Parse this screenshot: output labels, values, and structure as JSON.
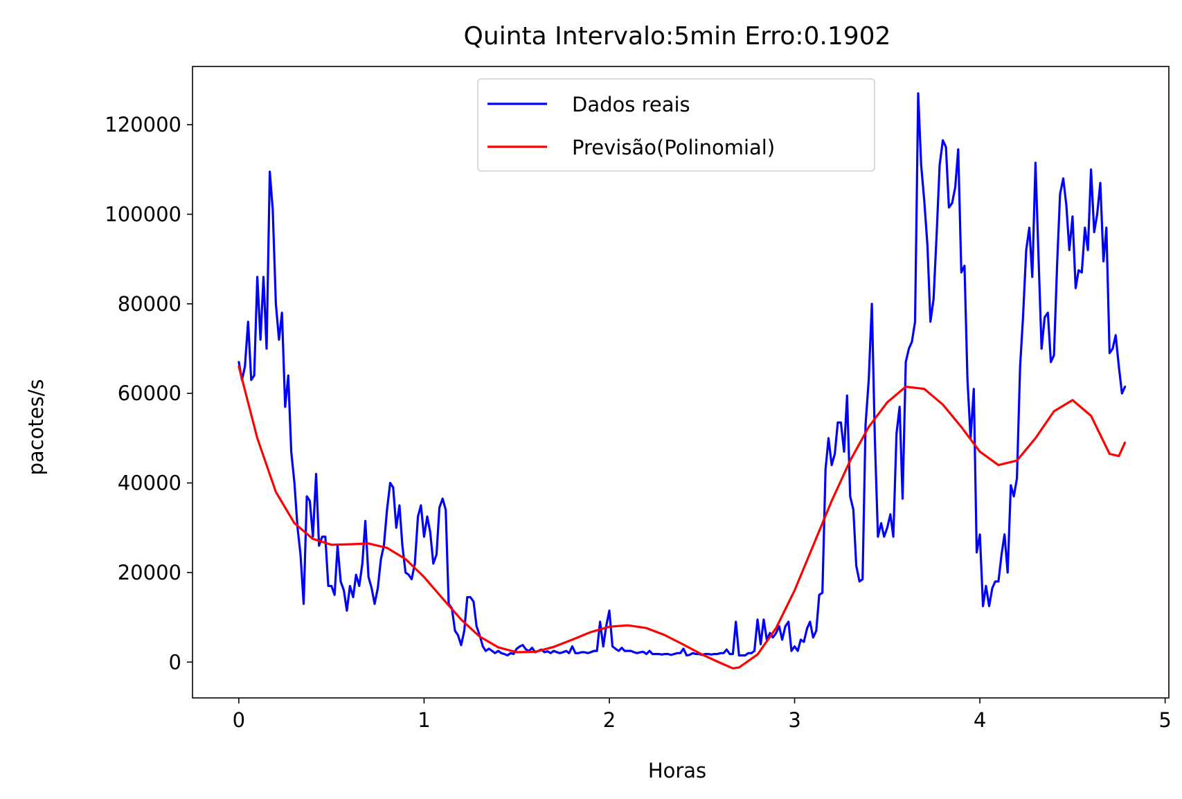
{
  "chart_data": {
    "type": "line",
    "title": "Quinta Intervalo:5min Erro:0.1902",
    "xlabel": "Horas",
    "ylabel": "pacotes/s",
    "xlim": [
      -0.25,
      5.02
    ],
    "ylim": [
      -8000,
      133000
    ],
    "xticks": [
      0,
      1,
      2,
      3,
      4,
      5
    ],
    "xtick_labels": [
      "0",
      "1",
      "2",
      "3",
      "4",
      "5"
    ],
    "yticks": [
      0,
      20000,
      40000,
      60000,
      80000,
      100000,
      120000
    ],
    "ytick_labels": [
      "0",
      "20000",
      "40000",
      "60000",
      "80000",
      "100000",
      "120000"
    ],
    "grid": false,
    "legend_position": "top-center",
    "series": [
      {
        "name": "Dados reais",
        "color": "#0000ff",
        "x": [
          0,
          0.017,
          0.033,
          0.05,
          0.067,
          0.083,
          0.1,
          0.117,
          0.133,
          0.15,
          0.167,
          0.183,
          0.2,
          0.217,
          0.233,
          0.25,
          0.267,
          0.283,
          0.3,
          0.317,
          0.333,
          0.35,
          0.367,
          0.383,
          0.4,
          0.417,
          0.433,
          0.45,
          0.467,
          0.483,
          0.5,
          0.517,
          0.533,
          0.55,
          0.567,
          0.583,
          0.6,
          0.617,
          0.633,
          0.65,
          0.667,
          0.683,
          0.7,
          0.717,
          0.733,
          0.75,
          0.767,
          0.783,
          0.8,
          0.817,
          0.833,
          0.85,
          0.867,
          0.883,
          0.9,
          0.917,
          0.933,
          0.95,
          0.967,
          0.983,
          1.0,
          1.017,
          1.033,
          1.05,
          1.067,
          1.083,
          1.1,
          1.117,
          1.133,
          1.15,
          1.167,
          1.183,
          1.2,
          1.217,
          1.233,
          1.25,
          1.267,
          1.283,
          1.3,
          1.317,
          1.333,
          1.35,
          1.367,
          1.383,
          1.4,
          1.417,
          1.433,
          1.45,
          1.467,
          1.483,
          1.5,
          1.517,
          1.533,
          1.55,
          1.567,
          1.583,
          1.6,
          1.617,
          1.633,
          1.65,
          1.667,
          1.683,
          1.7,
          1.717,
          1.733,
          1.75,
          1.767,
          1.783,
          1.8,
          1.817,
          1.833,
          1.85,
          1.867,
          1.883,
          1.9,
          1.917,
          1.933,
          1.95,
          1.967,
          1.983,
          2.0,
          2.017,
          2.033,
          2.05,
          2.067,
          2.083,
          2.1,
          2.117,
          2.133,
          2.15,
          2.167,
          2.183,
          2.2,
          2.217,
          2.233,
          2.25,
          2.267,
          2.283,
          2.3,
          2.317,
          2.333,
          2.35,
          2.367,
          2.383,
          2.4,
          2.417,
          2.433,
          2.45,
          2.467,
          2.483,
          2.5,
          2.517,
          2.533,
          2.55,
          2.567,
          2.583,
          2.6,
          2.617,
          2.633,
          2.65,
          2.667,
          2.683,
          2.7,
          2.717,
          2.733,
          2.75,
          2.767,
          2.783,
          2.8,
          2.817,
          2.833,
          2.85,
          2.867,
          2.883,
          2.9,
          2.917,
          2.933,
          2.95,
          2.967,
          2.983,
          3.0,
          3.017,
          3.033,
          3.05,
          3.067,
          3.083,
          3.1,
          3.117,
          3.133,
          3.15,
          3.167,
          3.183,
          3.2,
          3.217,
          3.233,
          3.25,
          3.267,
          3.283,
          3.3,
          3.317,
          3.333,
          3.35,
          3.367,
          3.383,
          3.4,
          3.417,
          3.433,
          3.45,
          3.467,
          3.483,
          3.5,
          3.517,
          3.533,
          3.55,
          3.567,
          3.583,
          3.6,
          3.617,
          3.633,
          3.65,
          3.667,
          3.683,
          3.7,
          3.717,
          3.733,
          3.75,
          3.767,
          3.783,
          3.8,
          3.817,
          3.833,
          3.85,
          3.867,
          3.883,
          3.9,
          3.917,
          3.933,
          3.95,
          3.967,
          3.983,
          4.0,
          4.017,
          4.033,
          4.05,
          4.067,
          4.083,
          4.1,
          4.117,
          4.133,
          4.15,
          4.167,
          4.183,
          4.2,
          4.217,
          4.233,
          4.25,
          4.267,
          4.283,
          4.3,
          4.317,
          4.333,
          4.35,
          4.367,
          4.383,
          4.4,
          4.417,
          4.433,
          4.45,
          4.467,
          4.483,
          4.5,
          4.517,
          4.533,
          4.55,
          4.567,
          4.583,
          4.6,
          4.617,
          4.633,
          4.65,
          4.667,
          4.683,
          4.7,
          4.717,
          4.733,
          4.75,
          4.767,
          4.783
        ],
        "y": [
          67000,
          63000,
          66000,
          76000,
          63000,
          64000,
          86000,
          72000,
          86000,
          70000,
          109500,
          101000,
          80000,
          72000,
          78000,
          57000,
          64000,
          47000,
          40000,
          30000,
          24000,
          13000,
          37000,
          36000,
          28000,
          42000,
          26000,
          28000,
          28000,
          17000,
          17000,
          15000,
          26000,
          18000,
          16000,
          11500,
          17000,
          14500,
          19500,
          17000,
          22000,
          31500,
          19000,
          16500,
          13000,
          16500,
          23000,
          26000,
          34000,
          40000,
          39000,
          30000,
          35000,
          26000,
          20000,
          19500,
          18500,
          22000,
          32500,
          35000,
          28000,
          32500,
          29000,
          22000,
          24000,
          34500,
          36500,
          34000,
          13000,
          12000,
          7000,
          6000,
          3800,
          7000,
          14500,
          14500,
          13500,
          8000,
          6000,
          3500,
          2500,
          3000,
          2500,
          2000,
          2500,
          2000,
          1800,
          1500,
          2000,
          1800,
          3000,
          3500,
          3800,
          2800,
          2500,
          3200,
          2200,
          2500,
          2800,
          2200,
          2400,
          2000,
          2500,
          2200,
          2000,
          2200,
          2500,
          2000,
          3500,
          2000,
          2000,
          2200,
          2200,
          2000,
          2200,
          2500,
          2500,
          9000,
          3500,
          8000,
          11500,
          3500,
          3000,
          2500,
          3200,
          2500,
          2500,
          2500,
          2200,
          2000,
          2200,
          2300,
          1800,
          2500,
          1800,
          1800,
          1800,
          1700,
          1800,
          1800,
          1600,
          1800,
          2000,
          2000,
          3000,
          1500,
          1600,
          2000,
          1800,
          1800,
          1600,
          1800,
          1800,
          1700,
          1800,
          1800,
          2000,
          2000,
          2800,
          1800,
          1800,
          9000,
          1500,
          1500,
          1500,
          2000,
          2000,
          2500,
          9500,
          4000,
          9500,
          5000,
          6500,
          5500,
          6500,
          8000,
          5000,
          8000,
          9000,
          2500,
          3500,
          2500,
          5000,
          4500,
          7500,
          9000,
          5500,
          7000,
          15000,
          15500,
          43000,
          50000,
          44000,
          46500,
          53500,
          53500,
          47000,
          59500,
          37000,
          34000,
          21500,
          18000,
          18500,
          53000,
          63000,
          80000,
          50000,
          28000,
          31000,
          28000,
          30000,
          33000,
          28000,
          51000,
          57000,
          36500,
          67000,
          70000,
          71500,
          76000,
          127000,
          111000,
          103000,
          93000,
          76000,
          81000,
          96000,
          111000,
          116500,
          115000,
          101500,
          102500,
          106000,
          114500,
          87000,
          88500,
          63000,
          50000,
          61000,
          24500,
          28500,
          12500,
          17000,
          12500,
          16500,
          18000,
          18000,
          24000,
          28500,
          20000,
          39500,
          37000,
          41000,
          66000,
          77000,
          92000,
          97000,
          86000,
          111500,
          90000,
          70000,
          77000,
          78000,
          67000,
          68500,
          89000,
          104500,
          108000,
          102000,
          92000,
          99500,
          83500,
          87500,
          87000,
          97000,
          92000,
          110000,
          96000,
          100000,
          107000,
          89500,
          97000,
          69000,
          70000,
          73000,
          66000,
          60000,
          61500
        ]
      },
      {
        "name": "Previsão(Polinomial)",
        "color": "#ff0000",
        "x": [
          0,
          0.1,
          0.2,
          0.3,
          0.4,
          0.5,
          0.6,
          0.7,
          0.8,
          0.9,
          1.0,
          1.1,
          1.2,
          1.3,
          1.4,
          1.5,
          1.6,
          1.7,
          1.8,
          1.9,
          2.0,
          2.1,
          2.2,
          2.3,
          2.4,
          2.5,
          2.6,
          2.667,
          2.7,
          2.8,
          2.9,
          3.0,
          3.1,
          3.2,
          3.3,
          3.4,
          3.5,
          3.6,
          3.7,
          3.8,
          3.9,
          4.0,
          4.1,
          4.2,
          4.3,
          4.4,
          4.5,
          4.6,
          4.7,
          4.75,
          4.783
        ],
        "y": [
          66000,
          50000,
          38000,
          31000,
          27500,
          26200,
          26300,
          26500,
          25500,
          23000,
          19000,
          14200,
          9500,
          5700,
          3300,
          2200,
          2300,
          3400,
          5000,
          6700,
          7900,
          8200,
          7600,
          6000,
          3900,
          1700,
          -200,
          -1400,
          -1200,
          1700,
          7600,
          16000,
          26000,
          36000,
          45000,
          52500,
          58000,
          61500,
          61000,
          57500,
          52500,
          47000,
          44000,
          45000,
          50000,
          56000,
          58500,
          55000,
          46500,
          46000,
          49000
        ]
      }
    ]
  }
}
